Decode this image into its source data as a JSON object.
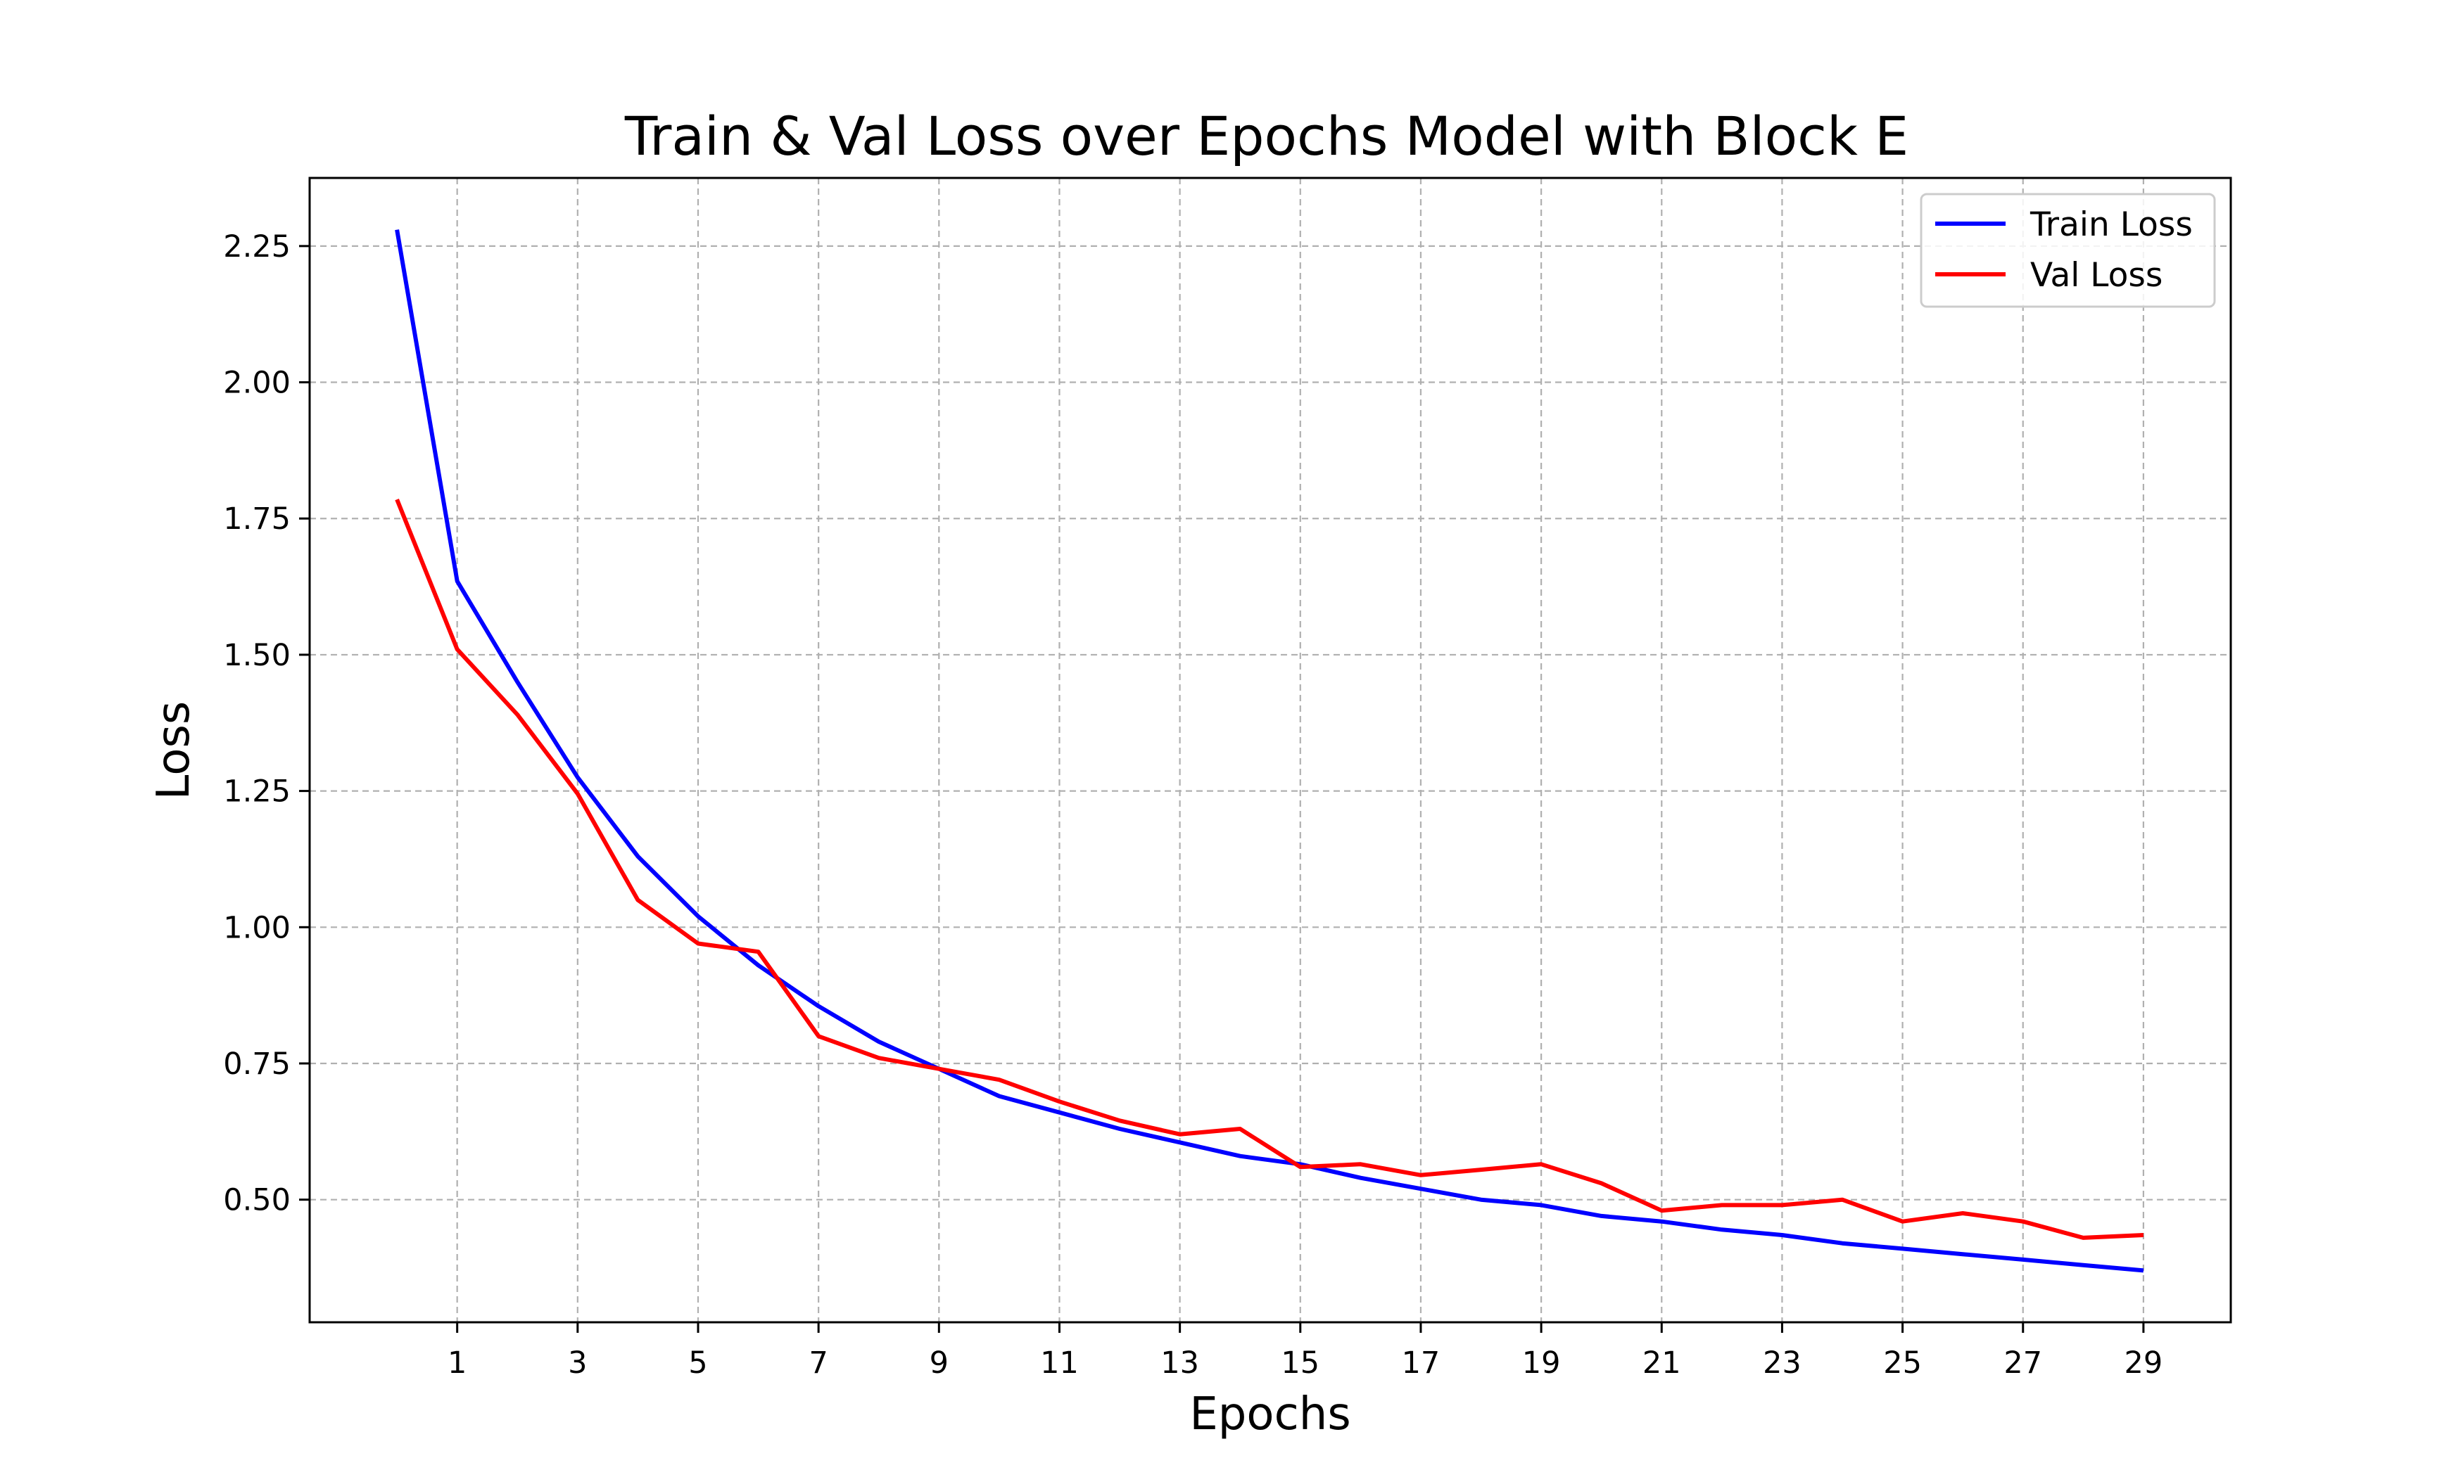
{
  "chart_data": {
    "type": "line",
    "title": "Train & Val Loss over Epochs Model with Block E",
    "xlabel": "Epochs",
    "ylabel": "Loss",
    "x": [
      0,
      1,
      2,
      3,
      4,
      5,
      6,
      7,
      8,
      9,
      10,
      11,
      12,
      13,
      14,
      15,
      16,
      17,
      18,
      19,
      20,
      21,
      22,
      23,
      24,
      25,
      26,
      27,
      28,
      29
    ],
    "xticks": [
      1,
      3,
      5,
      7,
      9,
      11,
      13,
      15,
      17,
      19,
      21,
      23,
      25,
      27,
      29
    ],
    "xlim": [
      -1.45,
      30.45
    ],
    "yticks": [
      "0.50",
      "0.75",
      "1.00",
      "1.25",
      "1.50",
      "1.75",
      "2.00",
      "2.25"
    ],
    "ylim": [
      0.275,
      2.375
    ],
    "grid": true,
    "legend_position": "top-right",
    "series": [
      {
        "name": "Train Loss",
        "color": "#0000ff",
        "values": [
          2.28,
          1.635,
          1.45,
          1.275,
          1.13,
          1.02,
          0.93,
          0.855,
          0.79,
          0.74,
          0.69,
          0.66,
          0.63,
          0.605,
          0.58,
          0.565,
          0.54,
          0.52,
          0.5,
          0.49,
          0.47,
          0.46,
          0.445,
          0.435,
          0.42,
          0.41,
          0.4,
          0.39,
          0.38,
          0.37
        ]
      },
      {
        "name": "Val Loss",
        "color": "#ff0000",
        "values": [
          1.785,
          1.51,
          1.39,
          1.245,
          1.05,
          0.97,
          0.955,
          0.8,
          0.76,
          0.74,
          0.72,
          0.68,
          0.645,
          0.62,
          0.63,
          0.56,
          0.565,
          0.545,
          0.555,
          0.565,
          0.53,
          0.48,
          0.49,
          0.49,
          0.5,
          0.46,
          0.475,
          0.46,
          0.43,
          0.435
        ]
      }
    ]
  }
}
